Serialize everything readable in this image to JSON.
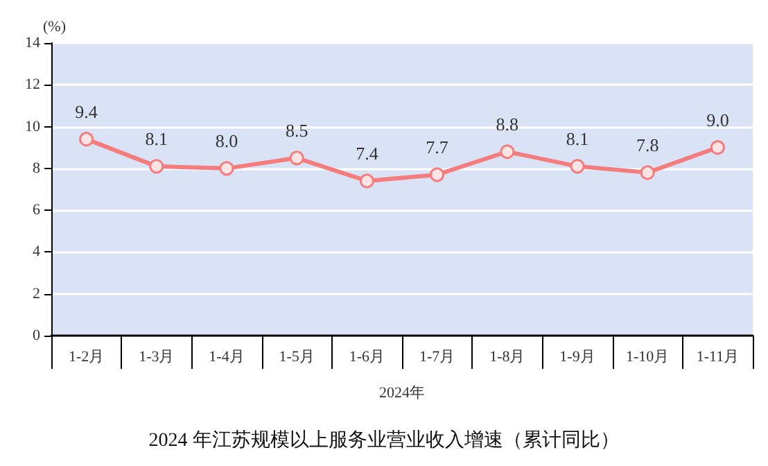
{
  "chart_data": {
    "type": "line",
    "title": "2024 年江苏规模以上服务业营业收入增速（累计同比）",
    "xlabel": "2024年",
    "ylabel": "(%)",
    "categories": [
      "1-2月",
      "1-3月",
      "1-4月",
      "1-5月",
      "1-6月",
      "1-7月",
      "1-8月",
      "1-9月",
      "1-10月",
      "1-11月"
    ],
    "series": [
      {
        "color": "#f47c7c",
        "values": [
          9.4,
          8.1,
          8.0,
          8.5,
          7.4,
          7.7,
          8.8,
          8.1,
          7.8,
          9.0
        ],
        "value_labels": [
          "9.4",
          "8.1",
          "8.0",
          "8.5",
          "7.4",
          "7.7",
          "8.8",
          "8.1",
          "7.8",
          "9.0"
        ]
      }
    ],
    "ylim": [
      0,
      14
    ],
    "yticks": [
      0,
      2,
      4,
      6,
      8,
      10,
      12,
      14
    ],
    "grid": "y",
    "marker": "circle",
    "line_style": "solid"
  }
}
